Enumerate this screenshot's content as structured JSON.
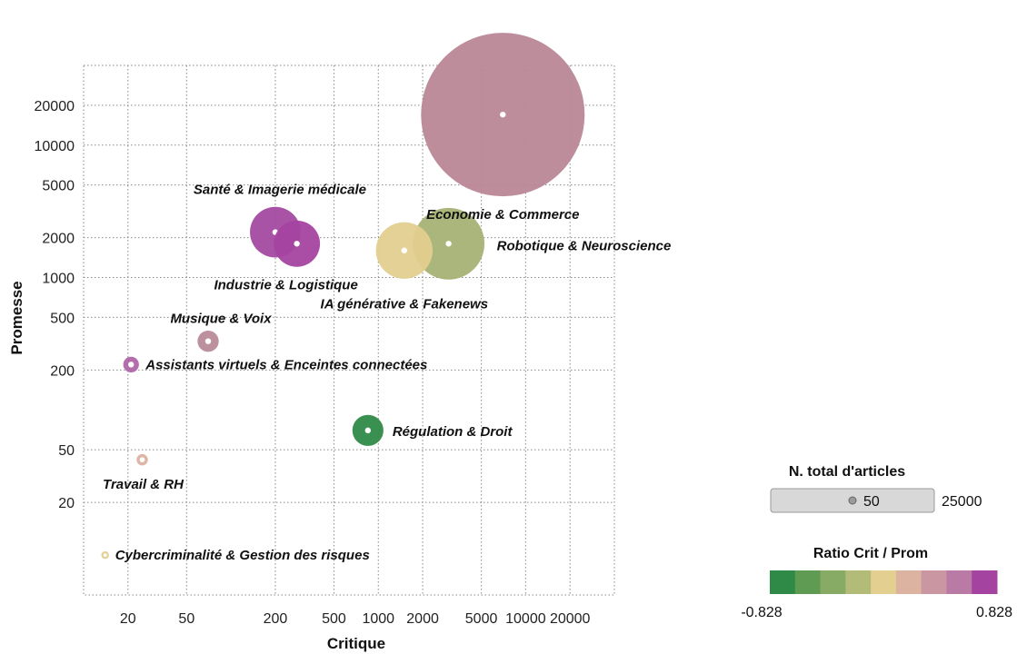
{
  "chart_data": {
    "type": "scatter",
    "xlabel": "Critique",
    "ylabel": "Promesse",
    "x_scale": "log",
    "y_scale": "log",
    "xlim": [
      10,
      40000
    ],
    "ylim": [
      4,
      40000
    ],
    "x_ticks": [
      20,
      50,
      200,
      500,
      1000,
      2000,
      5000,
      10000,
      20000
    ],
    "x_tick_labels": [
      "20",
      "50",
      "200",
      "500",
      "1000",
      "2000",
      "5000",
      "10000",
      "20000"
    ],
    "y_ticks": [
      20,
      50,
      200,
      500,
      1000,
      2000,
      5000,
      10000,
      20000
    ],
    "y_tick_labels": [
      "20",
      "50",
      "200",
      "500",
      "1000",
      "2000",
      "5000",
      "10000",
      "20000"
    ],
    "grid": true,
    "size_variable": "N. total d'articles",
    "color_variable": "Ratio Crit / Prom",
    "points": [
      {
        "label": "Economie & Commerce",
        "x": 7000,
        "y": 17000,
        "size": 25000,
        "color": "#b98797"
      },
      {
        "label": "Santé & Imagerie médicale",
        "x": 200,
        "y": 2200,
        "size": 2400,
        "color": "#a34aa0"
      },
      {
        "label": "Industrie & Logistique",
        "x": 280,
        "y": 1800,
        "size": 2000,
        "color": "#a544a0"
      },
      {
        "label": "IA générative & Fakenews",
        "x": 1500,
        "y": 1600,
        "size": 3000,
        "color": "#e3cf8f"
      },
      {
        "label": "Robotique & Neuroscience",
        "x": 3000,
        "y": 1800,
        "size": 4800,
        "color": "#a6b275"
      },
      {
        "label": "Musique & Voix",
        "x": 70,
        "y": 330,
        "size": 420,
        "color": "#b98a98"
      },
      {
        "label": "Assistants virtuels & Enceintes connectées",
        "x": 21,
        "y": 220,
        "size": 230,
        "color": "#b066a8"
      },
      {
        "label": "Régulation & Droit",
        "x": 850,
        "y": 70,
        "size": 900,
        "color": "#2f8a47"
      },
      {
        "label": "Travail & RH",
        "x": 25,
        "y": 42,
        "size": 120,
        "color": "#dcb2a1"
      },
      {
        "label": "Cybercriminalité & Gestion des risques",
        "x": 14,
        "y": 8,
        "size": 55,
        "color": "#e3cf8f"
      }
    ],
    "legend": {
      "size_title": "N. total d'articles",
      "size_min_label": "50",
      "size_max_label": "25000",
      "color_title": "Ratio Crit / Prom",
      "color_min_label": "-0.828",
      "color_max_label": "0.828",
      "color_scale": [
        "#2f8a47",
        "#5f9b52",
        "#87ab65",
        "#b3bb79",
        "#e3cf8f",
        "#dcb2a1",
        "#c996a2",
        "#b97aa6",
        "#a544a0"
      ]
    }
  }
}
